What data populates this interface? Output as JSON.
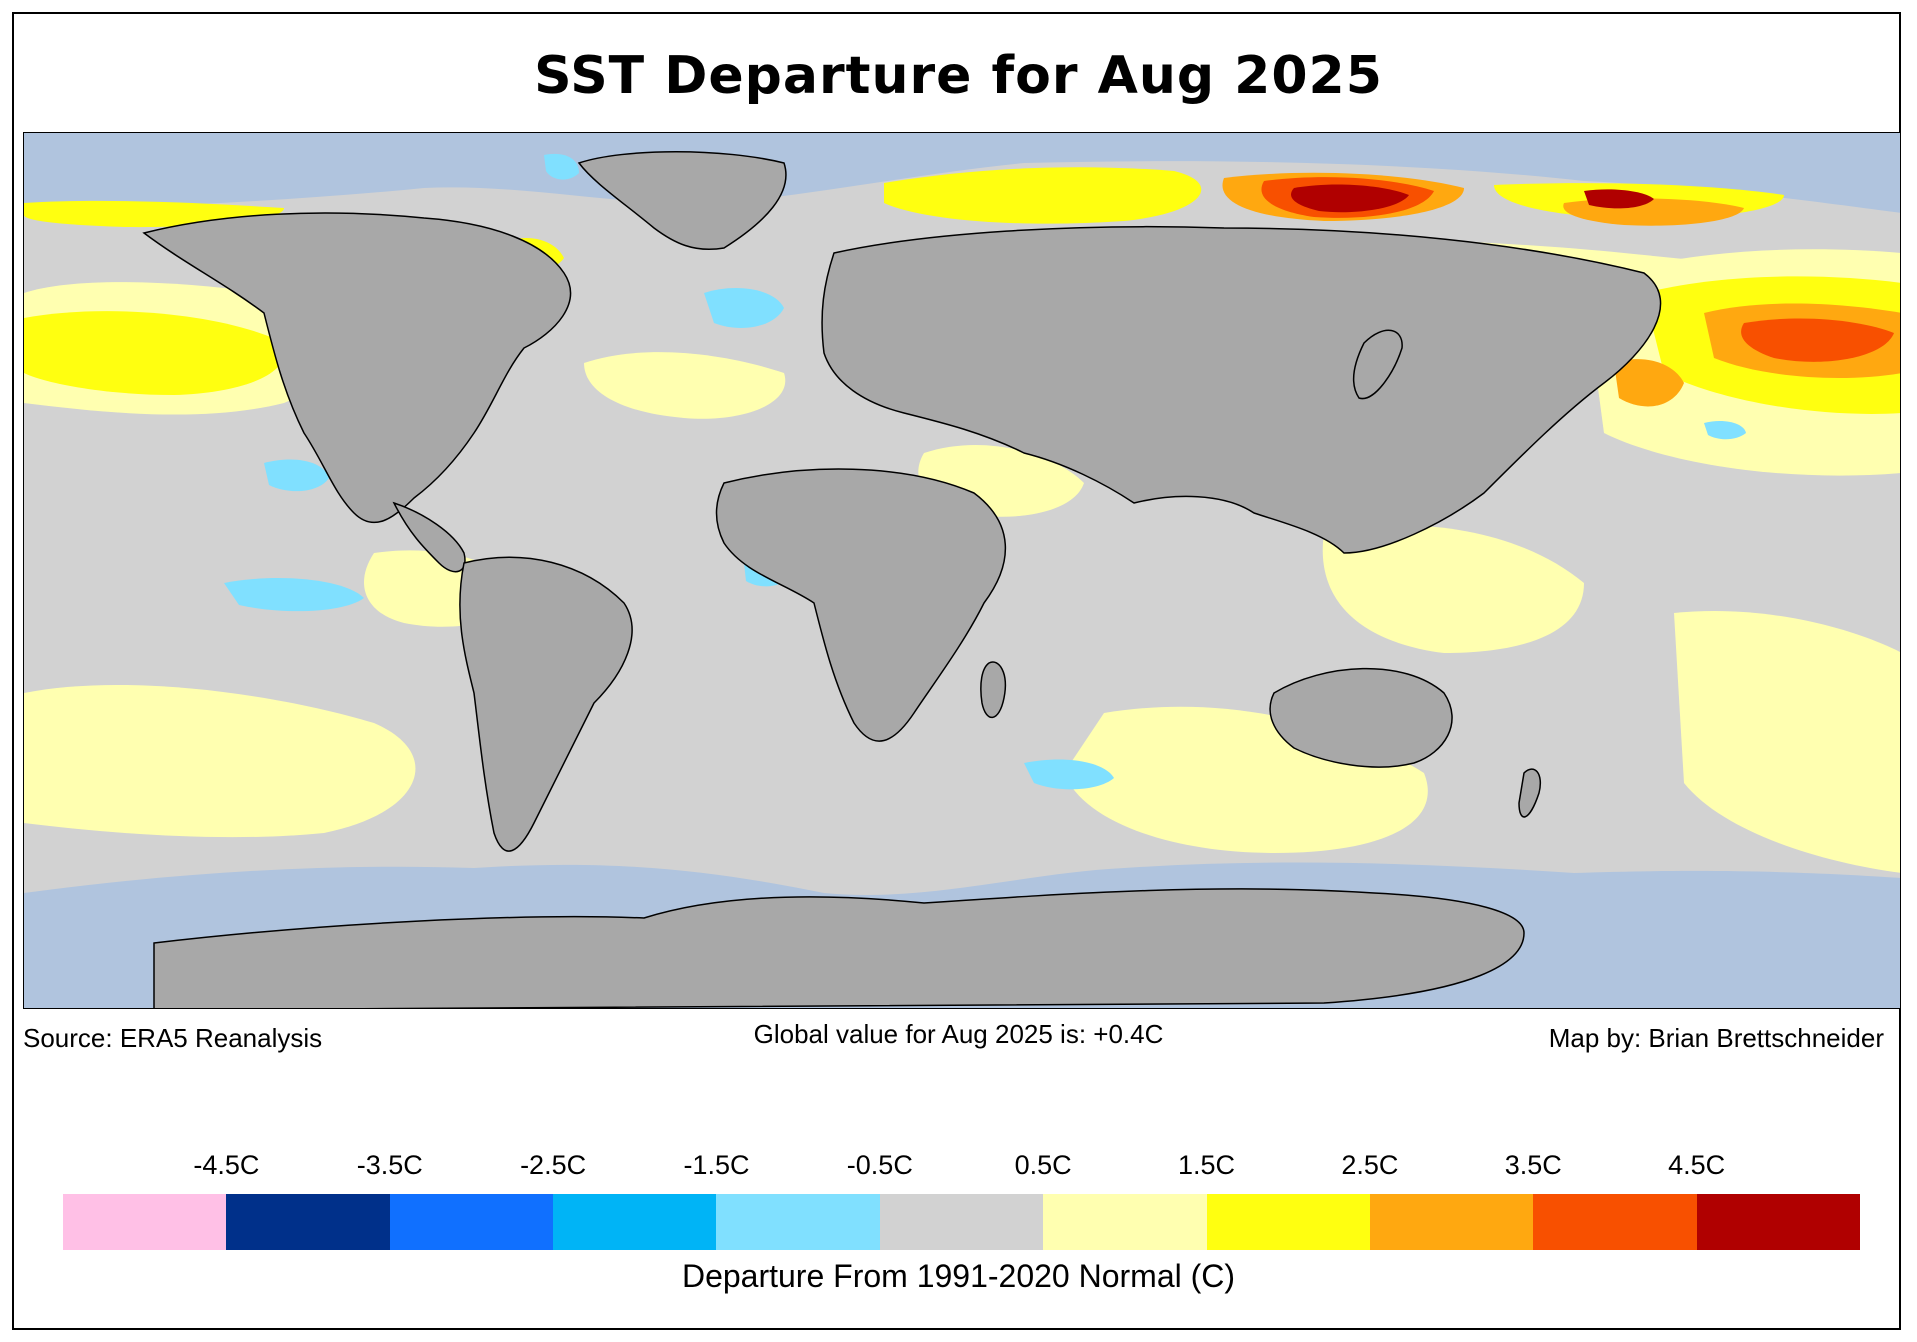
{
  "title": "SST Departure for Aug 2025",
  "footer": {
    "source": "Source: ERA5 Reanalysis",
    "global_value": "Global value for Aug 2025 is: +0.4C",
    "credit": "Map by: Brian Brettschneider"
  },
  "legend": {
    "title": "Departure From 1991-2020 Normal (C)",
    "ticks": [
      "-4.5C",
      "-3.5C",
      "-2.5C",
      "-1.5C",
      "-0.5C",
      "0.5C",
      "1.5C",
      "2.5C",
      "3.5C",
      "4.5C"
    ],
    "colors": [
      "#ffc0e6",
      "#00308a",
      "#1070ff",
      "#00b4f6",
      "#80e0ff",
      "#d2d2d2",
      "#ffffb0",
      "#ffff10",
      "#ffa810",
      "#f85000",
      "#b00000"
    ]
  },
  "map_colors": {
    "land": "#a8a8a8",
    "sea_ice": "#b0c4de",
    "neutral": "#d2d2d2"
  }
}
